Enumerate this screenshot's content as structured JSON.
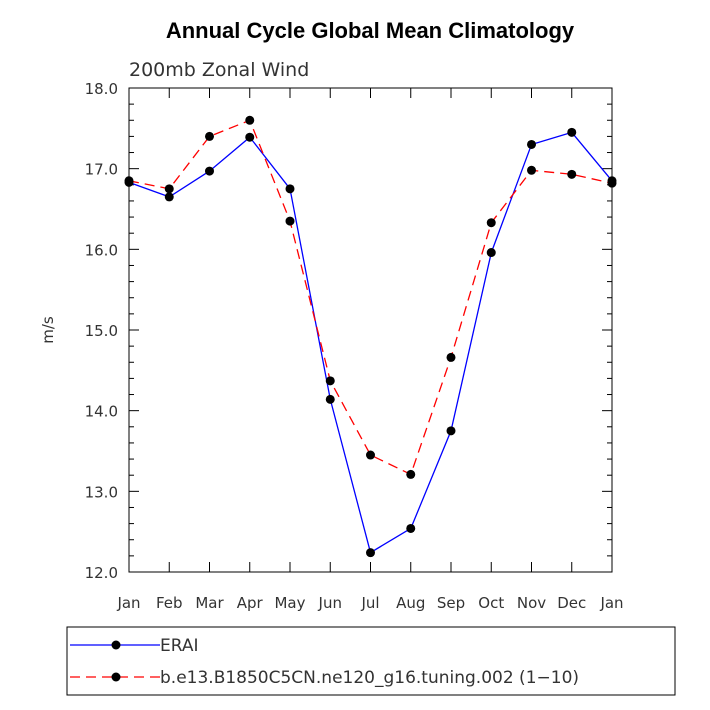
{
  "chart_data": {
    "type": "line",
    "title": "Annual Cycle Global Mean Climatology",
    "subtitle": "200mb Zonal Wind",
    "xlabel": "",
    "ylabel": "m/s",
    "ylim": [
      12.0,
      18.0
    ],
    "yticks": [
      "12.0",
      "13.0",
      "14.0",
      "15.0",
      "16.0",
      "17.0",
      "18.0"
    ],
    "categories": [
      "Jan",
      "Feb",
      "Mar",
      "Apr",
      "May",
      "Jun",
      "Jul",
      "Aug",
      "Sep",
      "Oct",
      "Nov",
      "Dec",
      "Jan"
    ],
    "legend_position": "bottom",
    "series": [
      {
        "name": "ERAI",
        "color": "#0000ff",
        "dash": "solid",
        "values": [
          16.83,
          16.65,
          16.97,
          17.39,
          16.75,
          14.14,
          12.24,
          12.54,
          13.75,
          15.96,
          17.3,
          17.45,
          16.85
        ]
      },
      {
        "name": "b.e13.B1850C5CN.ne120_g16.tuning.002 (1−10)",
        "color": "#ff0000",
        "dash": "dashed",
        "values": [
          16.85,
          16.75,
          17.4,
          17.6,
          16.35,
          14.37,
          13.45,
          13.21,
          14.66,
          16.33,
          16.98,
          16.93,
          16.82
        ]
      }
    ]
  }
}
